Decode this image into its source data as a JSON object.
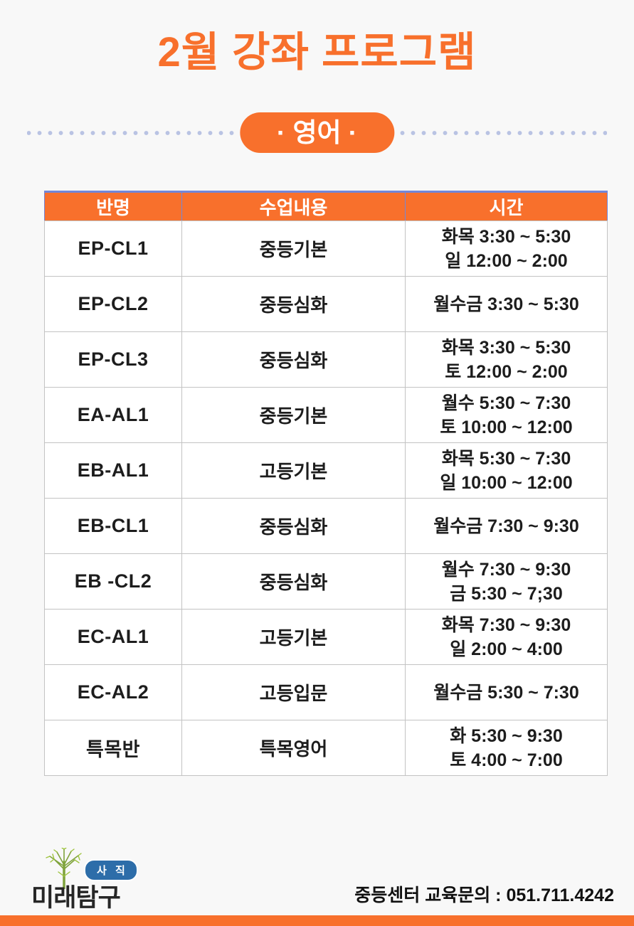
{
  "page": {
    "title": "2월 강좌 프로그램",
    "subject_badge": "· 영어 ·",
    "contact": "중등센터 교육문의 : 051.711.4242"
  },
  "logo": {
    "brand": "미래탐구",
    "branch_badge": "사 직"
  },
  "table": {
    "headers": [
      "반명",
      "수업내용",
      "시간"
    ],
    "rows": [
      {
        "name": "EP-CL1",
        "content": "중등기본",
        "times": [
          "화목 3:30 ~ 5:30",
          "일 12:00 ~ 2:00"
        ]
      },
      {
        "name": "EP-CL2",
        "content": "중등심화",
        "times": [
          "월수금 3:30 ~ 5:30"
        ]
      },
      {
        "name": "EP-CL3",
        "content": "중등심화",
        "times": [
          "화목 3:30 ~ 5:30",
          "토 12:00 ~ 2:00"
        ]
      },
      {
        "name": "EA-AL1",
        "content": "중등기본",
        "times": [
          "월수 5:30 ~ 7:30",
          "토 10:00 ~ 12:00"
        ]
      },
      {
        "name": "EB-AL1",
        "content": "고등기본",
        "times": [
          "화목 5:30 ~ 7:30",
          "일 10:00 ~ 12:00"
        ]
      },
      {
        "name": "EB-CL1",
        "content": "중등심화",
        "times": [
          "월수금 7:30 ~ 9:30"
        ]
      },
      {
        "name": "EB -CL2",
        "content": "중등심화",
        "times": [
          "월수 7:30 ~ 9:30",
          "금 5:30 ~ 7;30"
        ]
      },
      {
        "name": "EC-AL1",
        "content": "고등기본",
        "times": [
          "화목 7:30 ~ 9:30",
          "일 2:00 ~ 4:00"
        ]
      },
      {
        "name": "EC-AL2",
        "content": "고등입문",
        "times": [
          "월수금 5:30 ~ 7:30"
        ]
      },
      {
        "name": "특목반",
        "content": "특목영어",
        "times": [
          "화 5:30 ~ 9:30",
          "토 4:00 ~ 7:00"
        ]
      }
    ]
  },
  "colors": {
    "accent_orange": "#f8702c",
    "header_top_border_blue": "#7287d9",
    "dotted_line_blue": "#b9c3e3",
    "branch_badge_blue": "#2d6da9"
  }
}
